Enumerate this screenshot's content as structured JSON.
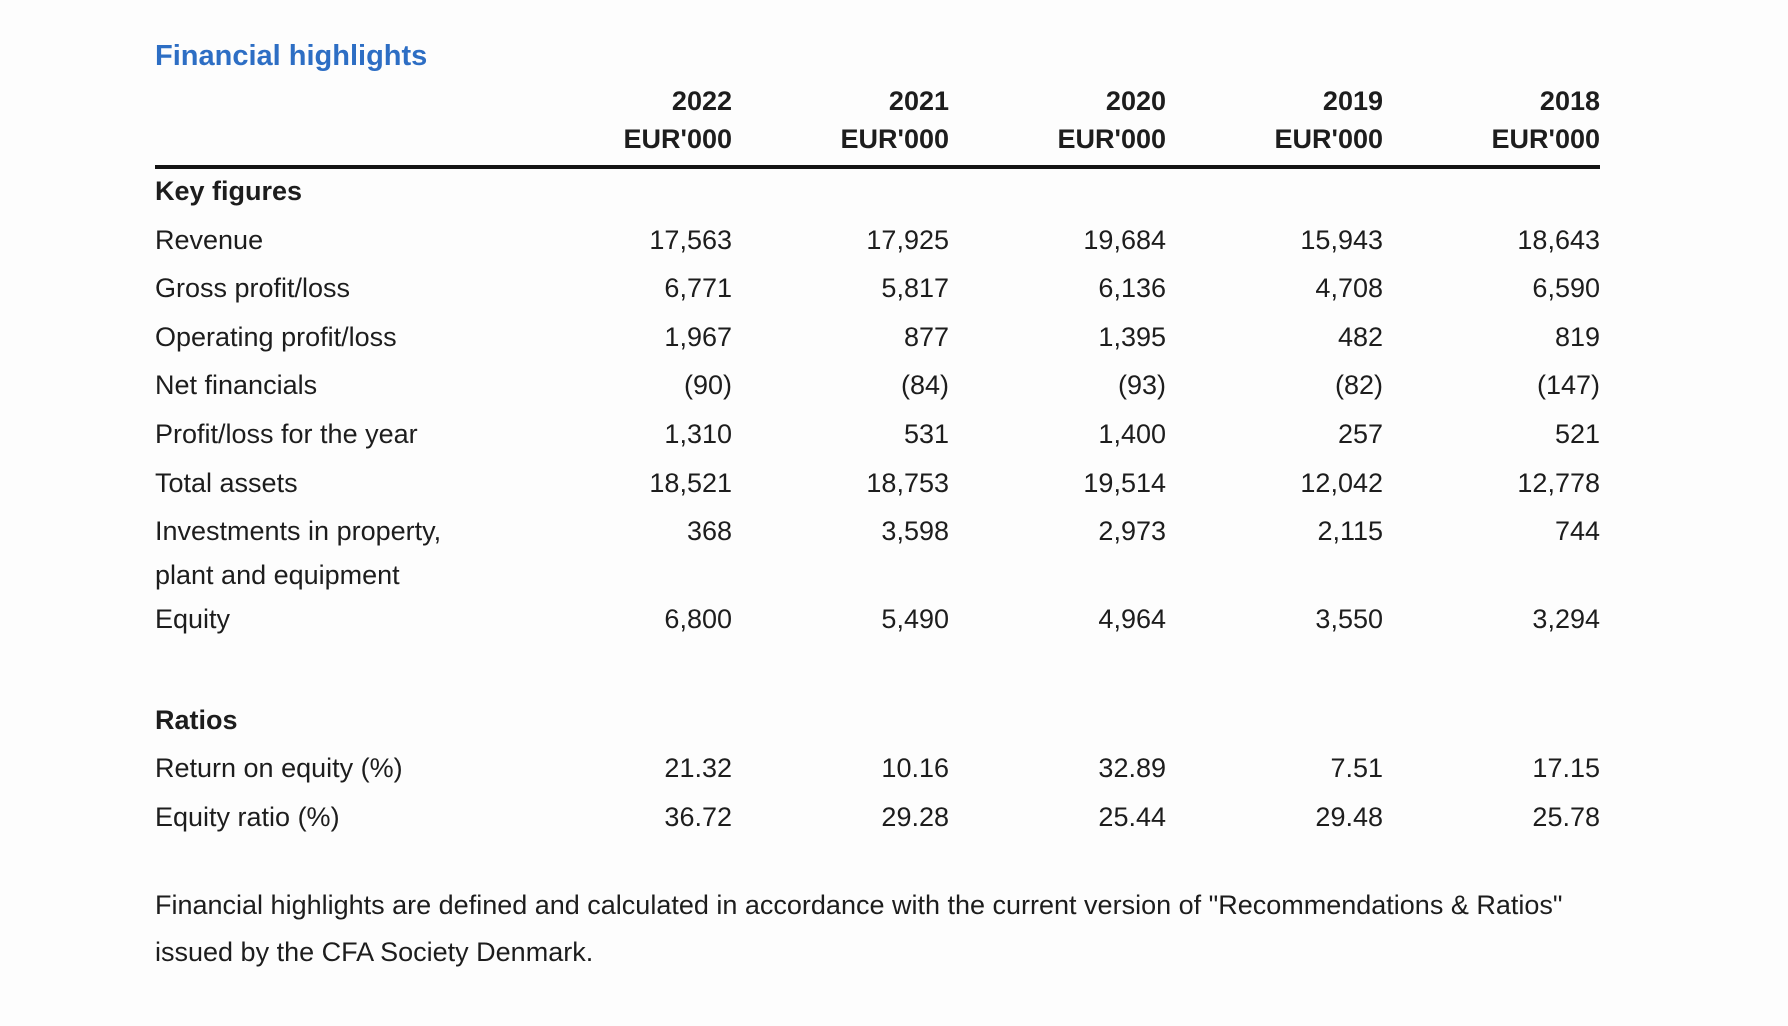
{
  "page": {
    "title": "Financial highlights",
    "title_color": "#2d6ec4",
    "footnote": "Financial highlights are defined and calculated in accordance with the current version of \"Recommendations & Ratios\" issued by the CFA Society Denmark."
  },
  "table": {
    "years": [
      "2022",
      "2021",
      "2020",
      "2019",
      "2018"
    ],
    "unit": "EUR'000",
    "sections": [
      {
        "heading": "Key figures",
        "rows": [
          {
            "label": "Revenue",
            "values": [
              "17,563",
              "17,925",
              "19,684",
              "15,943",
              "18,643"
            ]
          },
          {
            "label": "Gross profit/loss",
            "values": [
              "6,771",
              "5,817",
              "6,136",
              "4,708",
              "6,590"
            ]
          },
          {
            "label": "Operating profit/loss",
            "values": [
              "1,967",
              "877",
              "1,395",
              "482",
              "819"
            ]
          },
          {
            "label": "Net financials",
            "values": [
              "(90)",
              "(84)",
              "(93)",
              "(82)",
              "(147)"
            ]
          },
          {
            "label": "Profit/loss for the year",
            "values": [
              "1,310",
              "531",
              "1,400",
              "257",
              "521"
            ]
          },
          {
            "label": "Total assets",
            "values": [
              "18,521",
              "18,753",
              "19,514",
              "12,042",
              "12,778"
            ]
          },
          {
            "label": "Investments in property, plant and equipment",
            "values": [
              "368",
              "3,598",
              "2,973",
              "2,115",
              "744"
            ]
          },
          {
            "label": "Equity",
            "values": [
              "6,800",
              "5,490",
              "4,964",
              "3,550",
              "3,294"
            ]
          }
        ]
      },
      {
        "heading": "Ratios",
        "rows": [
          {
            "label": "Return on equity (%)",
            "values": [
              "21.32",
              "10.16",
              "32.89",
              "7.51",
              "17.15"
            ]
          },
          {
            "label": "Equity ratio (%)",
            "values": [
              "36.72",
              "29.28",
              "25.44",
              "29.48",
              "25.78"
            ]
          }
        ]
      }
    ]
  }
}
